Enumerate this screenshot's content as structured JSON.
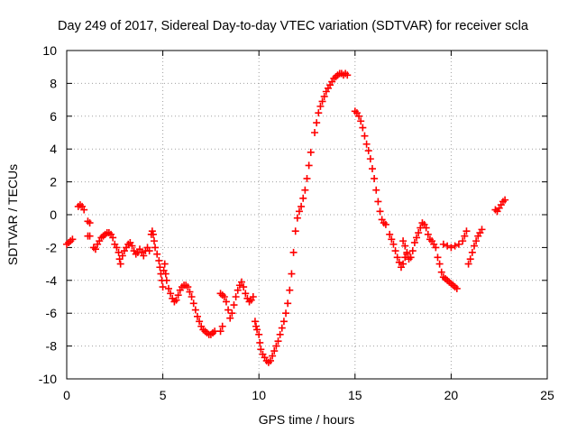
{
  "chart_data": {
    "type": "scatter",
    "title": "Day 249 of 2017, Sidereal Day-to-day VTEC variation (SDTVAR) for receiver scla",
    "xlabel": "GPS time / hours",
    "ylabel": "SDTVAR / TECUs",
    "xlim": [
      0,
      25
    ],
    "ylim": [
      -10,
      10
    ],
    "xticks": [
      "0",
      "5",
      "10",
      "15",
      "20",
      "25"
    ],
    "yticks": [
      "-10",
      "-8",
      "-6",
      "-4",
      "-2",
      "0",
      "2",
      "4",
      "6",
      "8",
      "10"
    ],
    "grid": true,
    "marker": "plus",
    "color": "#ff0000",
    "series": [
      {
        "name": "SDTVAR",
        "points": [
          [
            0.0,
            -1.8
          ],
          [
            0.1,
            -1.7
          ],
          [
            0.2,
            -1.6
          ],
          [
            0.3,
            -1.5
          ],
          [
            0.6,
            0.5
          ],
          [
            0.7,
            0.6
          ],
          [
            0.8,
            0.5
          ],
          [
            0.9,
            0.3
          ],
          [
            1.1,
            -0.4
          ],
          [
            1.2,
            -0.5
          ],
          [
            1.1,
            -1.3
          ],
          [
            1.2,
            -1.3
          ],
          [
            1.4,
            -2.0
          ],
          [
            1.5,
            -2.1
          ],
          [
            1.6,
            -1.8
          ],
          [
            1.7,
            -1.6
          ],
          [
            1.8,
            -1.4
          ],
          [
            1.9,
            -1.3
          ],
          [
            2.0,
            -1.2
          ],
          [
            2.1,
            -1.1
          ],
          [
            2.2,
            -1.1
          ],
          [
            2.3,
            -1.2
          ],
          [
            2.4,
            -1.4
          ],
          [
            2.5,
            -1.8
          ],
          [
            2.6,
            -2.0
          ],
          [
            2.7,
            -2.3
          ],
          [
            2.75,
            -2.7
          ],
          [
            2.8,
            -3.0
          ],
          [
            2.9,
            -2.5
          ],
          [
            3.0,
            -2.2
          ],
          [
            3.1,
            -2.0
          ],
          [
            3.2,
            -1.8
          ],
          [
            3.3,
            -1.7
          ],
          [
            3.4,
            -1.9
          ],
          [
            3.5,
            -2.2
          ],
          [
            3.6,
            -2.4
          ],
          [
            3.7,
            -2.3
          ],
          [
            3.8,
            -2.1
          ],
          [
            3.9,
            -2.3
          ],
          [
            4.0,
            -2.5
          ],
          [
            4.1,
            -2.2
          ],
          [
            4.2,
            -2.0
          ],
          [
            4.3,
            -2.2
          ],
          [
            4.4,
            -1.2
          ],
          [
            4.45,
            -1.0
          ],
          [
            4.5,
            -1.2
          ],
          [
            4.55,
            -1.6
          ],
          [
            4.6,
            -2.0
          ],
          [
            4.7,
            -2.4
          ],
          [
            4.8,
            -2.8
          ],
          [
            4.85,
            -3.2
          ],
          [
            4.9,
            -3.6
          ],
          [
            4.95,
            -4.0
          ],
          [
            5.0,
            -4.4
          ],
          [
            5.05,
            -3.4
          ],
          [
            5.1,
            -3.0
          ],
          [
            5.15,
            -3.6
          ],
          [
            5.2,
            -4.0
          ],
          [
            5.3,
            -4.5
          ],
          [
            5.4,
            -4.8
          ],
          [
            5.5,
            -5.1
          ],
          [
            5.6,
            -5.3
          ],
          [
            5.7,
            -5.2
          ],
          [
            5.8,
            -4.9
          ],
          [
            5.9,
            -4.6
          ],
          [
            6.0,
            -4.4
          ],
          [
            6.1,
            -4.3
          ],
          [
            6.2,
            -4.3
          ],
          [
            6.3,
            -4.4
          ],
          [
            6.4,
            -4.7
          ],
          [
            6.5,
            -5.0
          ],
          [
            6.6,
            -5.4
          ],
          [
            6.7,
            -5.8
          ],
          [
            6.8,
            -6.2
          ],
          [
            6.9,
            -6.5
          ],
          [
            7.0,
            -6.8
          ],
          [
            7.1,
            -7.0
          ],
          [
            7.2,
            -7.1
          ],
          [
            7.3,
            -7.2
          ],
          [
            7.4,
            -7.3
          ],
          [
            7.5,
            -7.3
          ],
          [
            7.6,
            -7.2
          ],
          [
            7.7,
            -7.1
          ],
          [
            8.0,
            -7.1
          ],
          [
            8.1,
            -6.8
          ],
          [
            8.0,
            -4.8
          ],
          [
            8.1,
            -4.9
          ],
          [
            8.2,
            -5.0
          ],
          [
            8.3,
            -5.3
          ],
          [
            8.4,
            -5.8
          ],
          [
            8.5,
            -6.3
          ],
          [
            8.6,
            -6.0
          ],
          [
            8.7,
            -5.5
          ],
          [
            8.8,
            -5.0
          ],
          [
            8.9,
            -4.6
          ],
          [
            9.0,
            -4.3
          ],
          [
            9.1,
            -4.1
          ],
          [
            9.2,
            -4.4
          ],
          [
            9.3,
            -4.8
          ],
          [
            9.4,
            -5.1
          ],
          [
            9.5,
            -5.3
          ],
          [
            9.6,
            -5.2
          ],
          [
            9.7,
            -5.0
          ],
          [
            9.8,
            -6.5
          ],
          [
            9.85,
            -6.8
          ],
          [
            9.9,
            -7.0
          ],
          [
            10.0,
            -7.3
          ],
          [
            10.05,
            -7.8
          ],
          [
            10.1,
            -8.2
          ],
          [
            10.2,
            -8.5
          ],
          [
            10.3,
            -8.7
          ],
          [
            10.4,
            -8.9
          ],
          [
            10.5,
            -9.0
          ],
          [
            10.6,
            -8.9
          ],
          [
            10.7,
            -8.6
          ],
          [
            10.8,
            -8.3
          ],
          [
            10.9,
            -8.0
          ],
          [
            11.0,
            -7.7
          ],
          [
            11.1,
            -7.3
          ],
          [
            11.2,
            -6.9
          ],
          [
            11.3,
            -6.5
          ],
          [
            11.4,
            -6.0
          ],
          [
            11.5,
            -5.4
          ],
          [
            11.6,
            -4.6
          ],
          [
            11.7,
            -3.6
          ],
          [
            11.8,
            -2.3
          ],
          [
            11.9,
            -1.0
          ],
          [
            12.0,
            -0.2
          ],
          [
            12.1,
            0.2
          ],
          [
            12.2,
            0.5
          ],
          [
            12.3,
            1.0
          ],
          [
            12.4,
            1.5
          ],
          [
            12.5,
            2.2
          ],
          [
            12.6,
            3.0
          ],
          [
            12.7,
            3.8
          ],
          [
            12.9,
            5.0
          ],
          [
            13.0,
            5.6
          ],
          [
            13.1,
            6.2
          ],
          [
            13.2,
            6.6
          ],
          [
            13.3,
            6.9
          ],
          [
            13.4,
            7.2
          ],
          [
            13.5,
            7.5
          ],
          [
            13.6,
            7.7
          ],
          [
            13.7,
            7.9
          ],
          [
            13.8,
            8.1
          ],
          [
            13.9,
            8.3
          ],
          [
            14.0,
            8.4
          ],
          [
            14.1,
            8.5
          ],
          [
            14.2,
            8.6
          ],
          [
            14.3,
            8.6
          ],
          [
            14.4,
            8.5
          ],
          [
            14.5,
            8.6
          ],
          [
            14.6,
            8.5
          ],
          [
            15.0,
            6.3
          ],
          [
            15.1,
            6.2
          ],
          [
            15.2,
            6.0
          ],
          [
            15.3,
            5.7
          ],
          [
            15.4,
            5.3
          ],
          [
            15.5,
            4.8
          ],
          [
            15.6,
            4.3
          ],
          [
            15.7,
            3.9
          ],
          [
            15.8,
            3.4
          ],
          [
            15.9,
            2.8
          ],
          [
            16.0,
            2.2
          ],
          [
            16.1,
            1.5
          ],
          [
            16.2,
            0.8
          ],
          [
            16.3,
            0.2
          ],
          [
            16.4,
            -0.3
          ],
          [
            16.5,
            -0.5
          ],
          [
            16.6,
            -0.6
          ],
          [
            16.8,
            -1.2
          ],
          [
            16.9,
            -1.5
          ],
          [
            17.0,
            -1.8
          ],
          [
            17.1,
            -2.2
          ],
          [
            17.2,
            -2.6
          ],
          [
            17.3,
            -2.9
          ],
          [
            17.4,
            -3.2
          ],
          [
            17.5,
            -3.0
          ],
          [
            17.6,
            -2.6
          ],
          [
            17.7,
            -2.3
          ],
          [
            17.5,
            -1.6
          ],
          [
            17.6,
            -1.9
          ],
          [
            17.7,
            -2.4
          ],
          [
            17.8,
            -2.7
          ],
          [
            17.9,
            -2.6
          ],
          [
            18.0,
            -2.2
          ],
          [
            18.1,
            -1.7
          ],
          [
            18.2,
            -1.4
          ],
          [
            18.3,
            -1.1
          ],
          [
            18.4,
            -0.8
          ],
          [
            18.5,
            -0.5
          ],
          [
            18.6,
            -0.6
          ],
          [
            18.7,
            -0.8
          ],
          [
            18.8,
            -1.2
          ],
          [
            18.9,
            -1.5
          ],
          [
            19.0,
            -1.6
          ],
          [
            19.1,
            -1.8
          ],
          [
            19.2,
            -2.0
          ],
          [
            19.3,
            -2.6
          ],
          [
            19.4,
            -3.0
          ],
          [
            19.5,
            -3.5
          ],
          [
            19.6,
            -3.8
          ],
          [
            19.7,
            -3.9
          ],
          [
            19.8,
            -4.0
          ],
          [
            19.9,
            -4.1
          ],
          [
            20.0,
            -4.2
          ],
          [
            20.1,
            -4.3
          ],
          [
            20.2,
            -4.4
          ],
          [
            20.3,
            -4.5
          ],
          [
            19.6,
            -1.8
          ],
          [
            19.8,
            -1.9
          ],
          [
            20.0,
            -2.0
          ],
          [
            20.2,
            -1.9
          ],
          [
            20.4,
            -1.8
          ],
          [
            20.6,
            -1.6
          ],
          [
            20.7,
            -1.3
          ],
          [
            20.8,
            -1.0
          ],
          [
            20.9,
            -3.0
          ],
          [
            21.0,
            -2.7
          ],
          [
            21.1,
            -2.3
          ],
          [
            21.2,
            -1.9
          ],
          [
            21.3,
            -1.6
          ],
          [
            21.4,
            -1.3
          ],
          [
            21.5,
            -1.1
          ],
          [
            21.6,
            -0.9
          ],
          [
            22.3,
            0.3
          ],
          [
            22.4,
            0.2
          ],
          [
            22.5,
            0.4
          ],
          [
            22.6,
            0.6
          ],
          [
            22.7,
            0.8
          ],
          [
            22.8,
            0.9
          ]
        ]
      }
    ]
  }
}
